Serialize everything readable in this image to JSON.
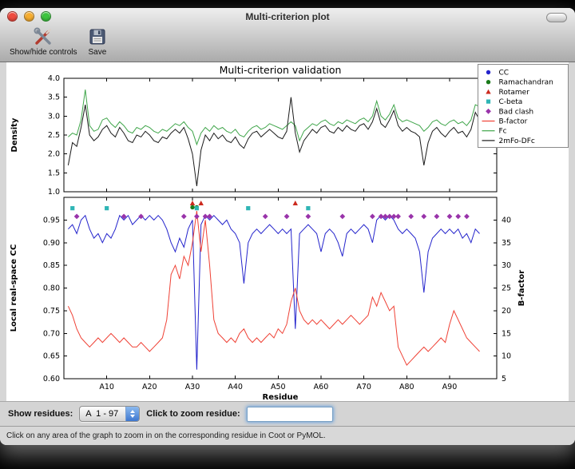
{
  "window": {
    "title": "Multi-criterion plot"
  },
  "toolbar": {
    "items": [
      {
        "label": "Show/hide controls",
        "icon": "tools-icon"
      },
      {
        "label": "Save",
        "icon": "floppy-icon"
      }
    ]
  },
  "controls": {
    "show_residues_label": "Show residues:",
    "residue_range": "A  1 - 97",
    "zoom_label": "Click to zoom residue:",
    "zoom_value": ""
  },
  "status_bar": {
    "text": "Click on any area of the graph to zoom in on the corresponding residue in Coot or PyMOL."
  },
  "icons": {
    "show_hide_controls": "tools-icon",
    "save": "floppy-icon",
    "popup_stepper": "up-down-arrows-icon"
  },
  "chart_data": {
    "type": "line",
    "title": "Multi-criterion validation",
    "xlabel": "Residue",
    "xlim": [
      0,
      101
    ],
    "residue_start": 1,
    "x_ticks": [
      10,
      20,
      30,
      40,
      50,
      60,
      70,
      80,
      90
    ],
    "x_tick_labels": [
      "A10",
      "A20",
      "A30",
      "A40",
      "A50",
      "A60",
      "A70",
      "A80",
      "A90"
    ],
    "panels": {
      "top": {
        "ylabel": "Density",
        "ylim": [
          1.0,
          4.0
        ],
        "yticks": [
          1.0,
          1.5,
          2.0,
          2.5,
          3.0,
          3.5,
          4.0
        ],
        "series": [
          {
            "name": "Fc",
            "color": "#3fa54a",
            "values": [
              2.45,
              2.55,
              2.5,
              2.9,
              3.7,
              2.75,
              2.6,
              2.65,
              2.9,
              2.95,
              2.8,
              2.7,
              2.85,
              2.75,
              2.6,
              2.55,
              2.7,
              2.65,
              2.75,
              2.7,
              2.6,
              2.55,
              2.65,
              2.6,
              2.7,
              2.8,
              2.75,
              2.85,
              2.7,
              2.6,
              2.25,
              2.55,
              2.7,
              2.6,
              2.75,
              2.65,
              2.7,
              2.6,
              2.55,
              2.65,
              2.5,
              2.45,
              2.6,
              2.7,
              2.75,
              2.65,
              2.7,
              2.8,
              2.75,
              2.7,
              2.65,
              2.75,
              2.85,
              2.75,
              2.35,
              2.6,
              2.7,
              2.8,
              2.75,
              2.85,
              2.9,
              2.8,
              2.75,
              2.85,
              2.8,
              2.9,
              2.85,
              2.8,
              2.9,
              2.95,
              2.85,
              3.0,
              3.4,
              3.0,
              2.9,
              3.05,
              3.3,
              2.95,
              2.85,
              2.9,
              2.85,
              2.8,
              2.75,
              2.6,
              2.7,
              2.85,
              2.9,
              2.8,
              2.75,
              2.85,
              2.9,
              2.8,
              2.85,
              2.75,
              2.9,
              3.3,
              3.25
            ]
          },
          {
            "name": "2mFo-DFc",
            "color": "#1a1a1a",
            "values": [
              1.7,
              2.3,
              2.2,
              2.7,
              3.3,
              2.5,
              2.35,
              2.45,
              2.65,
              2.75,
              2.55,
              2.45,
              2.7,
              2.55,
              2.35,
              2.3,
              2.5,
              2.45,
              2.6,
              2.5,
              2.35,
              2.3,
              2.45,
              2.4,
              2.55,
              2.65,
              2.55,
              2.7,
              2.4,
              2.0,
              1.15,
              2.1,
              2.5,
              2.35,
              2.55,
              2.4,
              2.5,
              2.35,
              2.3,
              2.45,
              2.25,
              2.15,
              2.4,
              2.55,
              2.6,
              2.45,
              2.55,
              2.65,
              2.55,
              2.45,
              2.4,
              2.6,
              3.5,
              2.55,
              2.05,
              2.35,
              2.5,
              2.65,
              2.55,
              2.7,
              2.75,
              2.6,
              2.55,
              2.7,
              2.6,
              2.75,
              2.65,
              2.6,
              2.75,
              2.8,
              2.65,
              2.85,
              3.2,
              2.8,
              2.7,
              2.9,
              3.15,
              2.75,
              2.6,
              2.7,
              2.6,
              2.55,
              2.45,
              1.7,
              2.3,
              2.6,
              2.7,
              2.55,
              2.45,
              2.6,
              2.7,
              2.55,
              2.6,
              2.45,
              2.65,
              3.1,
              2.9
            ]
          }
        ]
      },
      "bottom": {
        "ylabel_left": "Local real-space CC",
        "ylim_left": [
          0.6,
          1.0
        ],
        "yticks_left": [
          0.6,
          0.65,
          0.7,
          0.75,
          0.8,
          0.85,
          0.9,
          0.95
        ],
        "ylabel_right": "B-factor",
        "ylim_right": [
          5,
          45
        ],
        "yticks_right": [
          5,
          10,
          15,
          20,
          25,
          30,
          35,
          40
        ],
        "series": [
          {
            "name": "CC",
            "axis": "left",
            "color": "#2424cc",
            "values": [
              0.93,
              0.94,
              0.92,
              0.95,
              0.96,
              0.93,
              0.91,
              0.92,
              0.9,
              0.92,
              0.91,
              0.93,
              0.96,
              0.95,
              0.96,
              0.94,
              0.95,
              0.96,
              0.95,
              0.96,
              0.95,
              0.96,
              0.95,
              0.93,
              0.9,
              0.88,
              0.91,
              0.89,
              0.93,
              0.95,
              0.62,
              0.94,
              0.96,
              0.95,
              0.96,
              0.95,
              0.94,
              0.95,
              0.93,
              0.92,
              0.9,
              0.81,
              0.9,
              0.92,
              0.93,
              0.92,
              0.93,
              0.94,
              0.93,
              0.92,
              0.93,
              0.92,
              0.93,
              0.71,
              0.92,
              0.93,
              0.94,
              0.93,
              0.92,
              0.88,
              0.92,
              0.93,
              0.92,
              0.9,
              0.87,
              0.92,
              0.93,
              0.92,
              0.93,
              0.94,
              0.93,
              0.9,
              0.95,
              0.96,
              0.95,
              0.96,
              0.95,
              0.93,
              0.92,
              0.93,
              0.92,
              0.91,
              0.88,
              0.79,
              0.88,
              0.91,
              0.92,
              0.93,
              0.92,
              0.93,
              0.92,
              0.93,
              0.91,
              0.92,
              0.9,
              0.93,
              0.92
            ]
          },
          {
            "name": "B-factor",
            "axis": "right",
            "color": "#ef4135",
            "values": [
              21,
              19,
              16,
              14,
              13,
              12,
              13,
              14,
              13,
              14,
              15,
              14,
              13,
              14,
              13,
              12,
              12,
              13,
              12,
              11,
              12,
              13,
              14,
              18,
              28,
              30,
              27,
              32,
              30,
              35,
              42,
              33,
              40,
              30,
              18,
              15,
              14,
              13,
              14,
              13,
              15,
              16,
              14,
              13,
              14,
              13,
              14,
              15,
              14,
              16,
              15,
              17,
              22,
              25,
              20,
              18,
              17,
              18,
              17,
              18,
              17,
              16,
              17,
              18,
              17,
              18,
              19,
              18,
              17,
              18,
              19,
              23,
              21,
              24,
              22,
              20,
              21,
              12,
              10,
              8,
              9,
              10,
              11,
              12,
              11,
              12,
              13,
              14,
              13,
              17,
              20,
              18,
              16,
              14,
              13,
              12,
              11
            ]
          }
        ],
        "markers": [
          {
            "name": "Rotamer",
            "shape": "triangle",
            "color": "#cc2a1e",
            "y": 0.987,
            "residues": [
              30,
              32,
              54
            ]
          },
          {
            "name": "Ramachandran",
            "shape": "circle",
            "color": "#1a7a1a",
            "y": 0.978,
            "residues": [
              30,
              31
            ]
          },
          {
            "name": "C-beta",
            "shape": "square",
            "color": "#2fb5b5",
            "y": 0.976,
            "residues": [
              2,
              10,
              31,
              43,
              57
            ]
          },
          {
            "name": "Bad clash",
            "shape": "diamond",
            "color": "#9933aa",
            "y": 0.958,
            "residues": [
              3,
              14,
              18,
              28,
              31,
              33,
              34,
              47,
              52,
              57,
              65,
              72,
              74,
              75,
              76,
              77,
              78,
              81,
              84,
              87,
              90,
              92,
              94
            ]
          }
        ]
      }
    },
    "legend": [
      {
        "label": "CC",
        "glyph": "circle",
        "color": "#2424cc"
      },
      {
        "label": "Ramachandran",
        "glyph": "circle",
        "color": "#1a7a1a"
      },
      {
        "label": "Rotamer",
        "glyph": "triangle",
        "color": "#cc2a1e"
      },
      {
        "label": "C-beta",
        "glyph": "square",
        "color": "#2fb5b5"
      },
      {
        "label": "Bad clash",
        "glyph": "diamond",
        "color": "#9933aa"
      },
      {
        "label": "B-factor",
        "glyph": "line",
        "color": "#ef4135"
      },
      {
        "label": "Fc",
        "glyph": "line",
        "color": "#3fa54a"
      },
      {
        "label": "2mFo-DFc",
        "glyph": "line",
        "color": "#1a1a1a"
      }
    ]
  }
}
